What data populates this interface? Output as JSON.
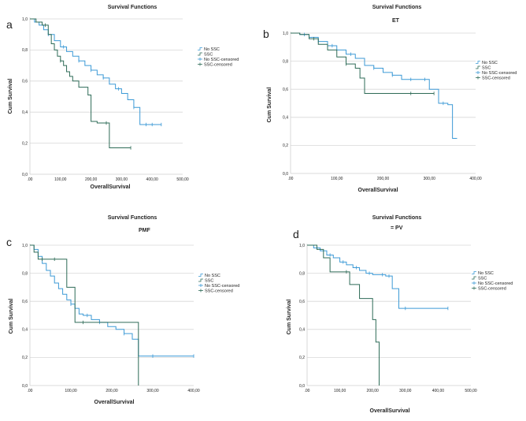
{
  "colors": {
    "no_ssc": "#3c9ad6",
    "ssc": "#2e6b57",
    "grid": "#d8d8d8",
    "frame": "#cfcfcf"
  },
  "chart_data": [
    {
      "type": "line",
      "panel_label": "a",
      "title": "Survival Functions",
      "subtitle": "",
      "xlabel": "OverallSurvival",
      "ylabel": "Cum Survival",
      "xlim": [
        0,
        500
      ],
      "ylim": [
        0,
        1
      ],
      "grid": "horizontal",
      "legend": "right",
      "x_ticks": [
        ".00",
        "100,00",
        "200,00",
        "300,00",
        "400,00",
        "500,00"
      ],
      "y_ticks": [
        "0,0",
        "0,2",
        "0,4",
        "0,6",
        "0,8",
        "1,0"
      ],
      "legend_entries": [
        "No SSC",
        "SSC",
        "No SSC-censored",
        "SSC-censored"
      ],
      "series": [
        {
          "name": "No SSC",
          "x": [
            0,
            15,
            30,
            45,
            60,
            80,
            100,
            120,
            140,
            160,
            180,
            200,
            220,
            240,
            260,
            280,
            300,
            320,
            340,
            360,
            430
          ],
          "y": [
            1.0,
            0.98,
            0.96,
            0.93,
            0.9,
            0.86,
            0.82,
            0.79,
            0.76,
            0.73,
            0.7,
            0.67,
            0.64,
            0.62,
            0.58,
            0.55,
            0.52,
            0.48,
            0.43,
            0.32,
            0.32
          ],
          "censored_x": [
            60,
            110,
            160,
            200,
            240,
            290,
            340,
            380,
            400,
            430
          ]
        },
        {
          "name": "SSC",
          "x": [
            0,
            20,
            40,
            60,
            70,
            80,
            90,
            100,
            110,
            120,
            130,
            140,
            160,
            190,
            200,
            220,
            250,
            260,
            330
          ],
          "y": [
            1.0,
            0.98,
            0.96,
            0.9,
            0.84,
            0.8,
            0.76,
            0.73,
            0.7,
            0.66,
            0.63,
            0.6,
            0.56,
            0.51,
            0.34,
            0.33,
            0.33,
            0.17,
            0.17
          ],
          "censored_x": [
            50,
            100,
            250,
            330
          ]
        }
      ]
    },
    {
      "type": "line",
      "panel_label": "b",
      "title": "Survival Functions",
      "subtitle": "ET",
      "xlabel": "OverallSurvival",
      "ylabel": "Cum Survival",
      "xlim": [
        0,
        400
      ],
      "ylim": [
        0,
        1
      ],
      "grid": "horizontal",
      "legend": "right",
      "x_ticks": [
        ".00",
        "100,00",
        "200,00",
        "300,00",
        "400,00"
      ],
      "y_ticks": [
        "0,0",
        "0,2",
        "0,4",
        "0,6",
        "0,8",
        "1,0"
      ],
      "legend_entries": [
        "No SSC",
        "SSC",
        "No SSC-censored",
        "SSC-censored"
      ],
      "series": [
        {
          "name": "No SSC",
          "x": [
            0,
            20,
            40,
            60,
            80,
            100,
            120,
            140,
            160,
            180,
            200,
            220,
            240,
            260,
            280,
            300,
            320,
            340,
            350,
            360
          ],
          "y": [
            1.0,
            0.99,
            0.97,
            0.94,
            0.91,
            0.88,
            0.85,
            0.82,
            0.77,
            0.75,
            0.72,
            0.7,
            0.67,
            0.67,
            0.67,
            0.6,
            0.5,
            0.49,
            0.25,
            0.25
          ],
          "censored_x": [
            30,
            60,
            90,
            130,
            180,
            220,
            260,
            290,
            330
          ]
        },
        {
          "name": "SSC",
          "x": [
            0,
            20,
            40,
            60,
            80,
            100,
            120,
            140,
            150,
            160,
            200,
            260,
            300,
            310
          ],
          "y": [
            1.0,
            0.99,
            0.96,
            0.92,
            0.88,
            0.83,
            0.78,
            0.75,
            0.68,
            0.57,
            0.57,
            0.57,
            0.57,
            0.57
          ],
          "censored_x": [
            50,
            120,
            260,
            310
          ]
        }
      ]
    },
    {
      "type": "line",
      "panel_label": "c",
      "title": "Survival Functions",
      "subtitle": "PMF",
      "xlabel": "OverallSurvival",
      "ylabel": "Cum Survival",
      "xlim": [
        0,
        400
      ],
      "ylim": [
        0,
        1
      ],
      "grid": "horizontal",
      "legend": "right",
      "x_ticks": [
        ".00",
        "100,00",
        "200,00",
        "300,00",
        "400,00"
      ],
      "y_ticks": [
        "0,0",
        "0,2",
        "0,4",
        "0,6",
        "0,8",
        "1,0"
      ],
      "legend_entries": [
        "No SSC",
        "SSC",
        "No SSC-censored",
        "SSC-censored"
      ],
      "series": [
        {
          "name": "No SSC",
          "x": [
            0,
            10,
            20,
            30,
            40,
            50,
            60,
            70,
            80,
            90,
            100,
            110,
            120,
            130,
            150,
            170,
            190,
            210,
            230,
            250,
            265,
            300,
            400
          ],
          "y": [
            1.0,
            0.97,
            0.92,
            0.87,
            0.82,
            0.78,
            0.73,
            0.69,
            0.65,
            0.61,
            0.58,
            0.55,
            0.51,
            0.5,
            0.47,
            0.45,
            0.42,
            0.4,
            0.37,
            0.33,
            0.21,
            0.21,
            0.21
          ],
          "censored_x": [
            100,
            140,
            170,
            230,
            300,
            400
          ]
        },
        {
          "name": "SSC",
          "x": [
            0,
            10,
            20,
            30,
            50,
            80,
            90,
            110,
            130,
            150,
            200,
            250,
            265
          ],
          "y": [
            1.0,
            0.95,
            0.9,
            0.9,
            0.9,
            0.9,
            0.7,
            0.45,
            0.45,
            0.45,
            0.45,
            0.45,
            0.0
          ],
          "censored_x": [
            30,
            60,
            130
          ]
        }
      ]
    },
    {
      "type": "line",
      "panel_label": "d",
      "title": "Survival Functions",
      "subtitle": "= PV",
      "xlabel": "OverallSurvival",
      "ylabel": "Cum Survival",
      "xlim": [
        0,
        500
      ],
      "ylim": [
        0,
        1
      ],
      "grid": "horizontal",
      "legend": "right",
      "x_ticks": [
        ".00",
        "100,00",
        "200,00",
        "300,00",
        "400,00",
        "500,00"
      ],
      "y_ticks": [
        "0,0",
        "0,2",
        "0,4",
        "0,6",
        "0,8",
        "1,0"
      ],
      "legend_entries": [
        "No SSC",
        "SSC",
        "No SSC-censored",
        "SSC-censored"
      ],
      "series": [
        {
          "name": "No SSC",
          "x": [
            0,
            20,
            40,
            60,
            80,
            100,
            120,
            140,
            160,
            180,
            200,
            220,
            240,
            260,
            280,
            300,
            430
          ],
          "y": [
            1.0,
            0.98,
            0.96,
            0.93,
            0.91,
            0.88,
            0.86,
            0.84,
            0.82,
            0.8,
            0.79,
            0.79,
            0.78,
            0.69,
            0.55,
            0.55,
            0.55
          ],
          "censored_x": [
            30,
            70,
            110,
            150,
            190,
            230,
            250,
            300,
            430
          ]
        },
        {
          "name": "SSC",
          "x": [
            0,
            30,
            50,
            70,
            100,
            130,
            160,
            190,
            200,
            205,
            210,
            215,
            220
          ],
          "y": [
            1.0,
            0.97,
            0.91,
            0.81,
            0.81,
            0.72,
            0.62,
            0.62,
            0.47,
            0.47,
            0.31,
            0.31,
            0.0
          ],
          "censored_x": [
            120
          ]
        }
      ]
    }
  ]
}
